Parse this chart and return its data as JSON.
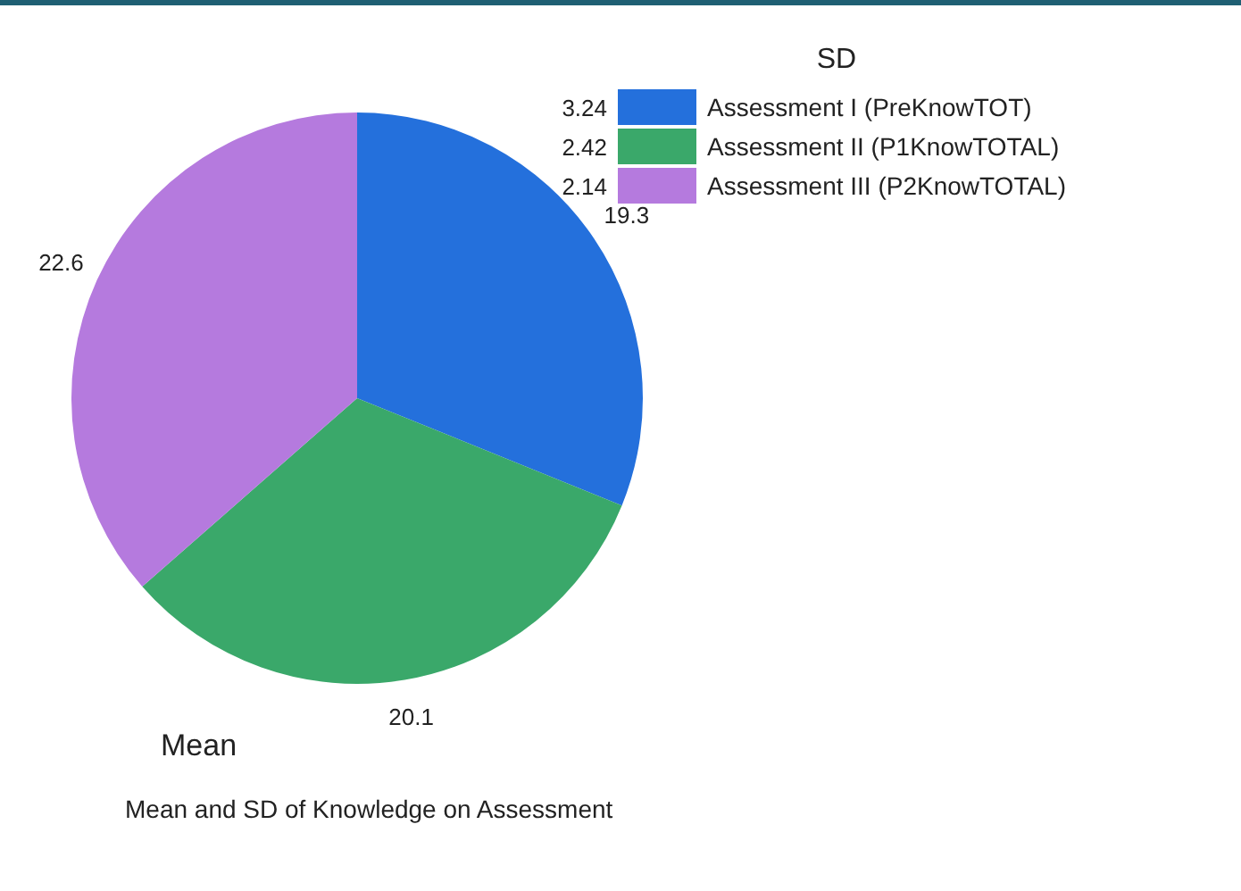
{
  "chart_data": {
    "type": "pie",
    "title": "Mean and SD of Knowledge on Assessment",
    "xlabel": "Mean",
    "legend_title": "SD",
    "legend": "top right",
    "categories": [
      "Assessment I (PreKnowTOT)",
      "Assessment II (P1KnowTOTAL)",
      "Assessment III (P2KnowTOTAL)"
    ],
    "values": [
      19.3,
      20.1,
      22.6
    ],
    "annotations": [
      "3.24",
      "2.42",
      "2.14"
    ],
    "colors": [
      "#2470dc",
      "#3aa86a",
      "#b57ade"
    ],
    "data_labels": true
  }
}
